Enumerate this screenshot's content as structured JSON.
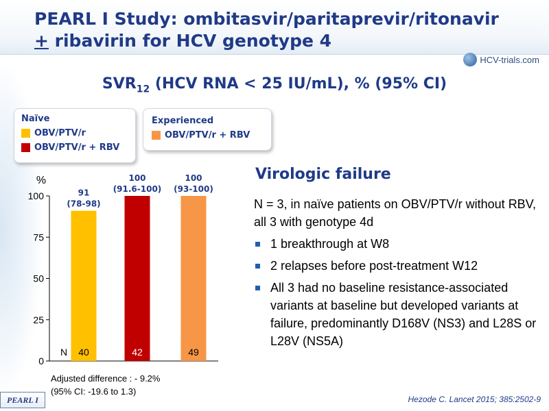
{
  "slide": {
    "title_line1": "PEARL I Study: ombitasvir/paritaprevir/ritonavir",
    "title_line2_underlined": "+",
    "title_line2_rest": " ribavirin for HCV genotype 4",
    "logo_text": "HCV-trials.com",
    "subtitle_pre": "SVR",
    "subtitle_sub": "12",
    "subtitle_post": " (HCV RNA < 25 IU/mL), % (95% CI)"
  },
  "legend": {
    "naive_header": "Naïve",
    "experienced_header": "Experienced",
    "items": [
      {
        "label": "OBV/PTV/r",
        "color": "#FFC000"
      },
      {
        "label": "OBV/PTV/r + RBV",
        "color": "#C00000"
      },
      {
        "label": "OBV/PTV/r + RBV",
        "color": "#F79646"
      }
    ]
  },
  "chart_data": {
    "type": "bar",
    "ylabel": "%",
    "ylim": [
      0,
      100
    ],
    "yticks": [
      0,
      25,
      50,
      75,
      100
    ],
    "n_label": "N",
    "categories": [
      "Naïve OBV/PTV/r",
      "Naïve OBV/PTV/r + RBV",
      "Experienced OBV/PTV/r + RBV"
    ],
    "values": [
      91,
      100,
      100
    ],
    "value_labels": [
      "91",
      "100",
      "100"
    ],
    "ci_labels": [
      "(78-98)",
      "(91.6-100)",
      "(93-100)"
    ],
    "n_values": [
      "40",
      "42",
      "49"
    ],
    "colors": [
      "#FFC000",
      "#C00000",
      "#F79646"
    ],
    "n_text_colors": [
      "#000000",
      "#ffffff",
      "#000000"
    ]
  },
  "note": {
    "line1": "Adjusted difference : - 9.2%",
    "line2": "(95% CI: -19.6 to 1.3)"
  },
  "virologic": {
    "title": "Virologic failure",
    "intro": "N = 3, in naïve patients on OBV/PTV/r without RBV, all 3 with genotype 4d",
    "bullets": [
      "1 breakthrough at W8",
      "2 relapses before post-treatment W12",
      "All 3 had no baseline resistance-associated variants at baseline but developed variants at failure, predominantly D168V (NS3) and L28S or L28V (NS5A)"
    ]
  },
  "footer": {
    "reference": "Hezode C. Lancet 2015; 385:2502-9",
    "badge": "PEARL I"
  }
}
